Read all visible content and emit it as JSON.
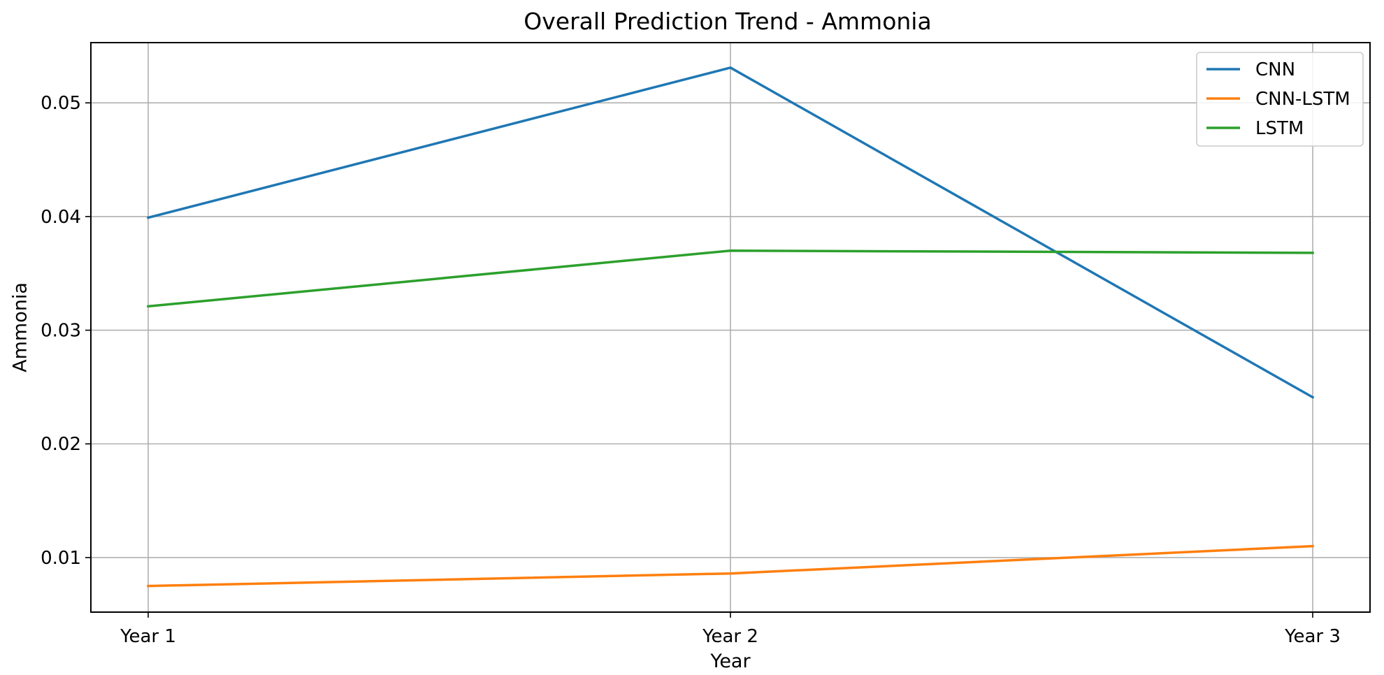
{
  "chart_data": {
    "type": "line",
    "title": "Overall Prediction Trend - Ammonia",
    "xlabel": "Year",
    "ylabel": "Ammonia",
    "categories": [
      "Year 1",
      "Year 2",
      "Year 3"
    ],
    "ylim": [
      0.0052,
      0.0553
    ],
    "yticks": [
      0.01,
      0.02,
      0.03,
      0.04,
      0.05
    ],
    "ytick_labels": [
      "0.01",
      "0.02",
      "0.03",
      "0.04",
      "0.05"
    ],
    "grid": true,
    "legend_position": "top-right",
    "series": [
      {
        "name": "CNN",
        "color": "#1f77b4",
        "values": [
          0.0399,
          0.0531,
          0.0241
        ]
      },
      {
        "name": "CNN-LSTM",
        "color": "#ff7f0e",
        "values": [
          0.0075,
          0.0086,
          0.011
        ]
      },
      {
        "name": "LSTM",
        "color": "#2ca02c",
        "values": [
          0.0321,
          0.037,
          0.0368
        ]
      }
    ]
  }
}
